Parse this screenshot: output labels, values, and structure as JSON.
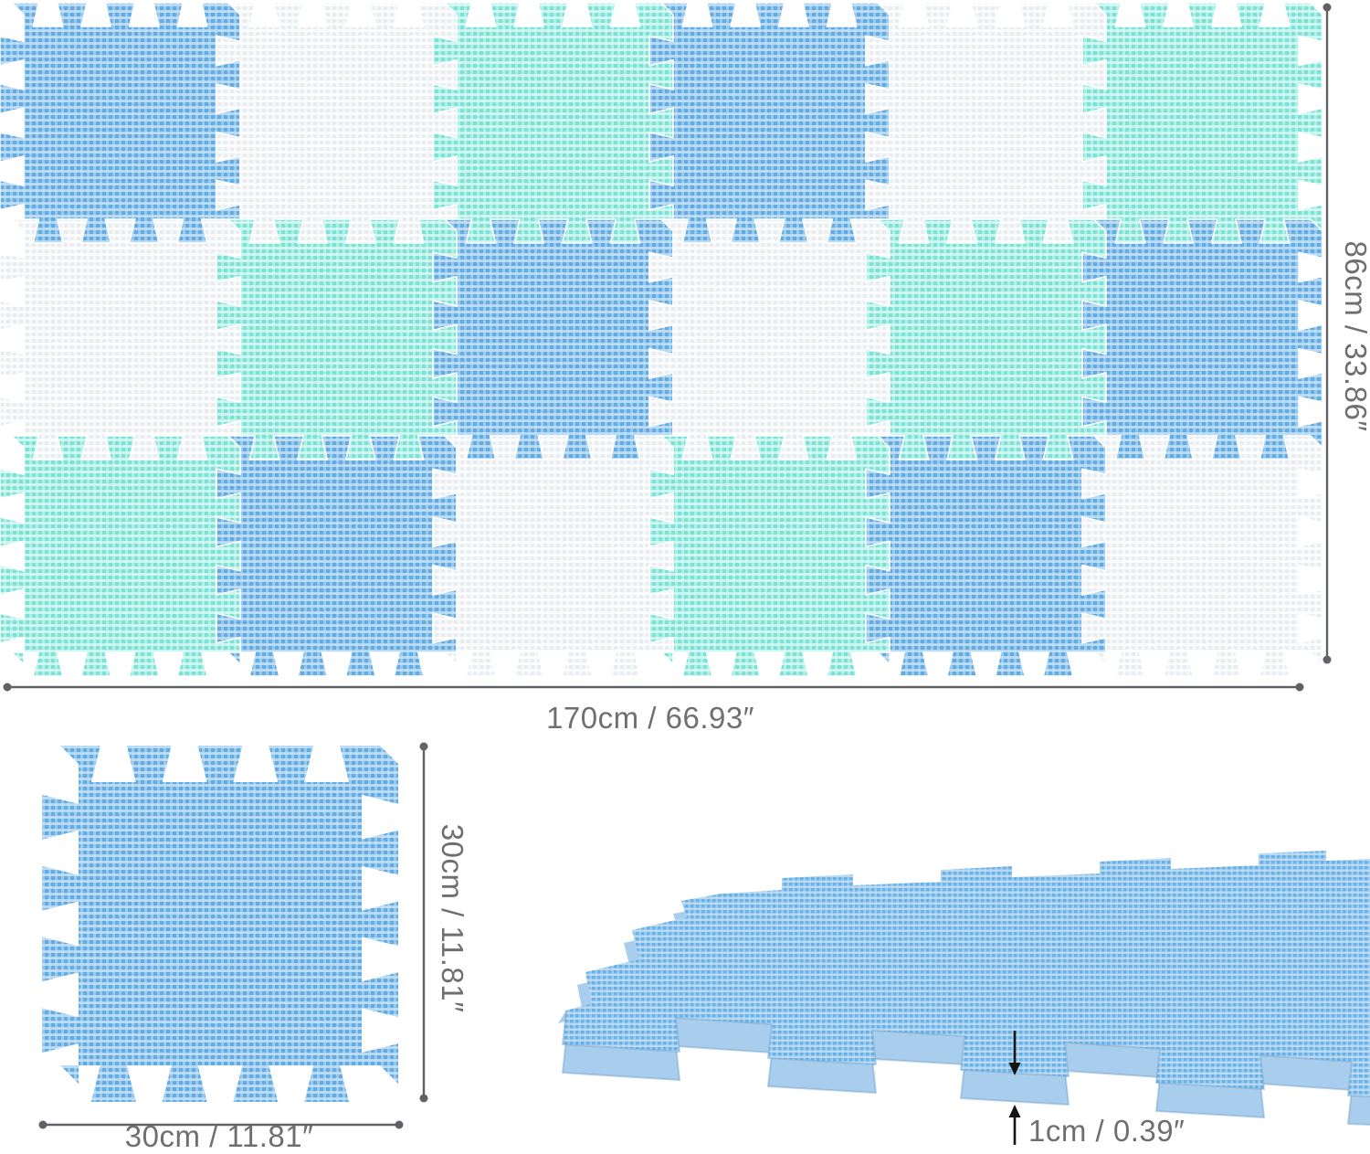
{
  "page": {
    "background": "#ffffff",
    "description": "Interlocking EVA foam play mat dimension diagram"
  },
  "top_view": {
    "rows": 3,
    "cols": 6,
    "tile_pattern": [
      [
        "blue",
        "white",
        "teal",
        "blue",
        "white",
        "teal"
      ],
      [
        "white",
        "teal",
        "blue",
        "white",
        "teal",
        "blue"
      ],
      [
        "teal",
        "blue",
        "white",
        "teal",
        "blue",
        "white"
      ]
    ]
  },
  "tile_colors": {
    "blue": {
      "base": "#63ACE3",
      "weave": "#C7E2F6"
    },
    "teal": {
      "base": "#7CE2D6",
      "weave": "#DCF9F5"
    },
    "white": {
      "base": "#E8EDF1",
      "weave": "#FFFFFF"
    }
  },
  "perspective_tile": {
    "surface_base": "#69B0E5",
    "surface_weave": "#C3E0F5",
    "side_color": "#A9CDED",
    "edge_shade": "#6F9FC9"
  },
  "annotation": {
    "line_color": "#5f6368",
    "dot_color": "#5f6368",
    "text_color": "#6f6f6f",
    "arrow_color": "#141414"
  },
  "labels": {
    "mat_width": "170cm / 66.93″",
    "mat_height": "86cm / 33.86″",
    "tile_height": "30cm / 11.81″",
    "tile_width": "30cm / 11.81″",
    "thickness": "1cm / 0.39″"
  }
}
